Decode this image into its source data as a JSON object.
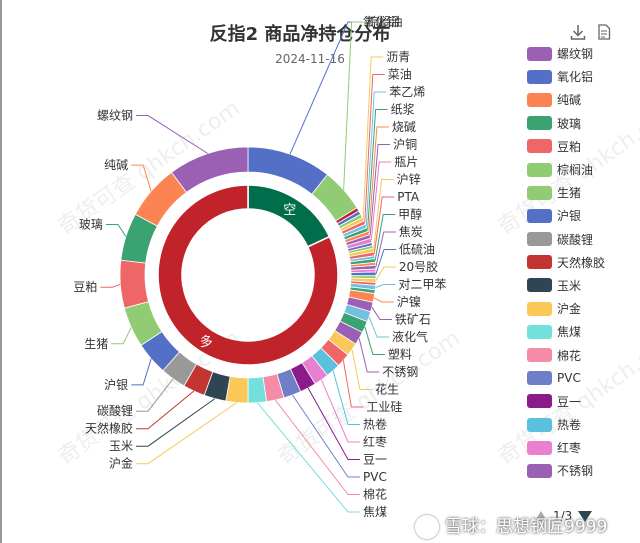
{
  "title": "反指2 商品净持仓分布",
  "subtitle": "2024-11-16",
  "toolbar": {
    "download_icon": "download-icon",
    "data_view_icon": "document-icon"
  },
  "legend": {
    "page": "1/3",
    "items": [
      {
        "name": "螺纹钢",
        "color": "#9a60b4"
      },
      {
        "name": "氧化铝",
        "color": "#5470c6"
      },
      {
        "name": "纯碱",
        "color": "#fc8452"
      },
      {
        "name": "玻璃",
        "color": "#3ba272"
      },
      {
        "name": "豆粕",
        "color": "#ee6666"
      },
      {
        "name": "棕榈油",
        "color": "#91cc75"
      },
      {
        "name": "生猪",
        "color": "#91cc75"
      },
      {
        "name": "沪银",
        "color": "#5470c6"
      },
      {
        "name": "碳酸锂",
        "color": "#999999"
      },
      {
        "name": "天然橡胶",
        "color": "#c23531"
      },
      {
        "name": "玉米",
        "color": "#2f4554"
      },
      {
        "name": "沪金",
        "color": "#fac858"
      },
      {
        "name": "焦煤",
        "color": "#73e0dc"
      },
      {
        "name": "棉花",
        "color": "#f58ba6"
      },
      {
        "name": "PVC",
        "color": "#6e7fc7"
      },
      {
        "name": "豆一",
        "color": "#8b1a8b"
      },
      {
        "name": "热卷",
        "color": "#5bc0de"
      },
      {
        "name": "红枣",
        "color": "#e87fd0"
      },
      {
        "name": "不锈钢",
        "color": "#9a60b4"
      }
    ]
  },
  "watermark": "奇货可查 qhkch.com",
  "brand": "雪球：思想钢匠9999",
  "chart_data": {
    "type": "pie",
    "inner": {
      "slices": [
        {
          "name": "空",
          "value": 18,
          "color": "#006e4a"
        },
        {
          "name": "多",
          "value": 82,
          "color": "#c1232b"
        }
      ]
    },
    "outer": {
      "slices": [
        {
          "name": "氧化铝",
          "value": 11.5,
          "color": "#5470c6"
        },
        {
          "name": "棕榈油",
          "value": 6.0,
          "color": "#91cc75"
        },
        {
          "name": "",
          "value": 0.5,
          "color": "#c1232b"
        },
        {
          "name": "",
          "value": 0.5,
          "color": "#5470c6"
        },
        {
          "name": "",
          "value": 0.5,
          "color": "#91cc75"
        },
        {
          "name": "沥青",
          "value": 0.5,
          "color": "#fac858"
        },
        {
          "name": "菜油",
          "value": 0.5,
          "color": "#ee6666"
        },
        {
          "name": "苯乙烯",
          "value": 0.5,
          "color": "#73c0de"
        },
        {
          "name": "纸浆",
          "value": 0.5,
          "color": "#3ba272"
        },
        {
          "name": "烧碱",
          "value": 0.5,
          "color": "#fc8452"
        },
        {
          "name": "沪铜",
          "value": 0.5,
          "color": "#9a60b4"
        },
        {
          "name": "瓶片",
          "value": 0.6,
          "color": "#ea7ccc"
        },
        {
          "name": "",
          "value": 0.4,
          "color": "#5470c6"
        },
        {
          "name": "",
          "value": 0.4,
          "color": "#91cc75"
        },
        {
          "name": "沪锌",
          "value": 0.5,
          "color": "#fac858"
        },
        {
          "name": "PTA",
          "value": 0.5,
          "color": "#ee6666"
        },
        {
          "name": "",
          "value": 0.4,
          "color": "#73c0de"
        },
        {
          "name": "甲醇",
          "value": 0.5,
          "color": "#3ba272"
        },
        {
          "name": "",
          "value": 0.4,
          "color": "#fc8452"
        },
        {
          "name": "焦炭",
          "value": 0.5,
          "color": "#9a60b4"
        },
        {
          "name": "",
          "value": 0.4,
          "color": "#ea7ccc"
        },
        {
          "name": "低硫油",
          "value": 0.5,
          "color": "#5470c6"
        },
        {
          "name": "",
          "value": 0.4,
          "color": "#91cc75"
        },
        {
          "name": "20号胶",
          "value": 0.5,
          "color": "#fac858"
        },
        {
          "name": "",
          "value": 0.4,
          "color": "#ee6666"
        },
        {
          "name": "对二甲苯",
          "value": 0.6,
          "color": "#73c0de"
        },
        {
          "name": "",
          "value": 0.5,
          "color": "#3ba272"
        },
        {
          "name": "沪镍",
          "value": 1.2,
          "color": "#fc8452"
        },
        {
          "name": "铁矿石",
          "value": 1.3,
          "color": "#9a60b4"
        },
        {
          "name": "液化气",
          "value": 1.4,
          "color": "#73c0de"
        },
        {
          "name": "塑料",
          "value": 1.6,
          "color": "#3ba272"
        },
        {
          "name": "不锈钢",
          "value": 1.8,
          "color": "#9a60b4"
        },
        {
          "name": "花生",
          "value": 1.8,
          "color": "#fac858"
        },
        {
          "name": "工业硅",
          "value": 1.9,
          "color": "#ee6666"
        },
        {
          "name": "热卷",
          "value": 2.0,
          "color": "#5bc0de"
        },
        {
          "name": "红枣",
          "value": 2.0,
          "color": "#e87fd0"
        },
        {
          "name": "豆一",
          "value": 2.2,
          "color": "#8b1a8b"
        },
        {
          "name": "PVC",
          "value": 2.4,
          "color": "#6e7fc7"
        },
        {
          "name": "棉花",
          "value": 2.4,
          "color": "#f58ba6"
        },
        {
          "name": "焦煤",
          "value": 2.5,
          "color": "#73e0dc"
        },
        {
          "name": "沪金",
          "value": 3.0,
          "color": "#fac858"
        },
        {
          "name": "玉米",
          "value": 3.0,
          "color": "#2f4554"
        },
        {
          "name": "天然橡胶",
          "value": 3.0,
          "color": "#c23531"
        },
        {
          "name": "碳酸锂",
          "value": 3.5,
          "color": "#999999"
        },
        {
          "name": "沪银",
          "value": 4.5,
          "color": "#5470c6"
        },
        {
          "name": "生猪",
          "value": 5.5,
          "color": "#91cc75"
        },
        {
          "name": "豆粕",
          "value": 6.5,
          "color": "#ee6666"
        },
        {
          "name": "玻璃",
          "value": 6.5,
          "color": "#3ba272"
        },
        {
          "name": "纯碱",
          "value": 7.5,
          "color": "#fc8452"
        },
        {
          "name": "螺纹钢",
          "value": 11.0,
          "color": "#9a60b4"
        }
      ]
    },
    "leader_labels": [
      "氧化铝",
      "棕榈油",
      "沥青",
      "菜油",
      "苯乙烯",
      "纸浆",
      "烧碱",
      "沪铜",
      "瓶片",
      "沪锌",
      "PTA",
      "甲醇",
      "焦炭",
      "低硫油",
      "20号胶",
      "对二甲苯",
      "沪镍",
      "铁矿石",
      "液化气",
      "塑料",
      "花生",
      "工业硅",
      "红枣",
      "豆一",
      "棉花",
      "沪金",
      "天然橡胶",
      "碳酸锂",
      "沪银",
      "生猪",
      "豆粕",
      "玻璃",
      "纯碱",
      "螺纹钢"
    ]
  }
}
